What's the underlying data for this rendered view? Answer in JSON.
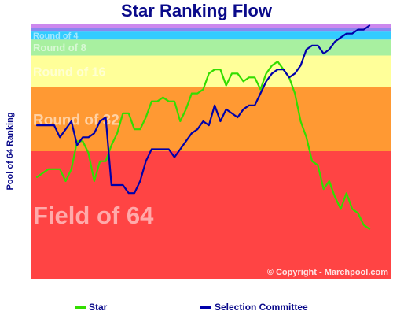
{
  "chart_data": {
    "type": "line",
    "title": "Star Ranking Flow",
    "ylabel": "Pool of 64 Ranking",
    "copyright": "© Copyright - Marchpool.com",
    "ylim": [
      64,
      1
    ],
    "x": [
      1,
      2,
      3,
      4,
      5,
      6,
      7,
      8,
      9,
      10,
      11,
      12,
      13,
      14,
      15,
      16,
      17,
      18,
      19,
      20,
      21,
      22,
      23,
      24,
      25,
      26,
      27,
      28,
      29,
      30,
      31,
      32,
      33,
      34,
      35,
      36,
      37,
      38,
      39,
      40,
      41,
      42,
      43,
      44,
      45,
      46,
      47,
      48,
      49,
      50,
      51,
      52,
      53,
      54,
      55,
      56,
      57,
      58,
      59
    ],
    "bands": [
      {
        "label": "Field of 64",
        "from": 32.5,
        "to": 64.5,
        "color": "#ff4444"
      },
      {
        "label": "Round of 32",
        "from": 16.5,
        "to": 32.5,
        "color": "#ff9933"
      },
      {
        "label": "Round of 16",
        "from": 8.5,
        "to": 16.5,
        "color": "#ffff99"
      },
      {
        "label": "Round of 8",
        "from": 4.5,
        "to": 8.5,
        "color": "#a8f0a0"
      },
      {
        "label": "Round of 4",
        "from": 2.5,
        "to": 4.5,
        "color": "#33ccff"
      },
      {
        "label": "",
        "from": 1.5,
        "to": 2.5,
        "color": "#8888ee"
      },
      {
        "label": "",
        "from": 0.5,
        "to": 1.5,
        "color": "#cc88ee"
      }
    ],
    "series": [
      {
        "name": "Star",
        "color": "#33dd00",
        "values": [
          39,
          38,
          37,
          37,
          37,
          40,
          37,
          30,
          30,
          33,
          40,
          35,
          35,
          31,
          28,
          23,
          23,
          27,
          27,
          24,
          20,
          20,
          19,
          20,
          20,
          25,
          22,
          18,
          18,
          17,
          13,
          12,
          12,
          16,
          13,
          13,
          15,
          14,
          14,
          17,
          13,
          11,
          10,
          12,
          14,
          18,
          25,
          29,
          35,
          36,
          42,
          40,
          44,
          47,
          43,
          47,
          48,
          51,
          52
        ],
        "legend": "Star"
      },
      {
        "name": "Selection Committee",
        "color": "#0000aa",
        "values": [
          26,
          26,
          26,
          26,
          29,
          27,
          25,
          31,
          29,
          29,
          28,
          25,
          24,
          41,
          41,
          41,
          43,
          43,
          40,
          35,
          32,
          32,
          32,
          32,
          34,
          32,
          30,
          28,
          27,
          25,
          26,
          21,
          25,
          22,
          23,
          24,
          22,
          21,
          21,
          18,
          15,
          13,
          12,
          12,
          14,
          13,
          11,
          7,
          6,
          6,
          8,
          7,
          5,
          4,
          3,
          3,
          2,
          2,
          1
        ],
        "legend": "Selection Committee"
      }
    ],
    "grid": false,
    "legend_position": "bottom"
  }
}
